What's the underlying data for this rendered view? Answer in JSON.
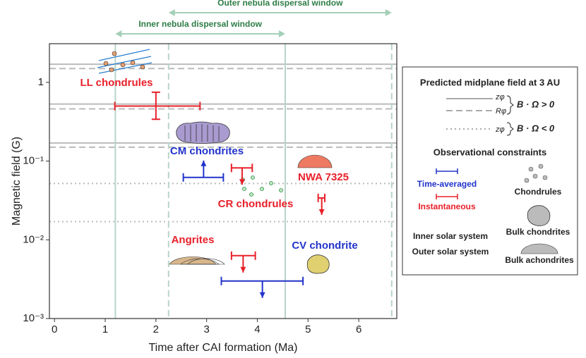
{
  "chart_data": {
    "type": "errorbar",
    "xlabel": "Time after CAI formation (Ma)",
    "ylabel": "Magnetic field (G)",
    "xlim": [
      -0.1,
      6.75
    ],
    "xticks": [
      0,
      1,
      2,
      3,
      4,
      5,
      6
    ],
    "ylim": [
      0.001,
      3.1
    ],
    "log_y": true,
    "yticks": [
      {
        "value": 0.001,
        "label": "10⁻³"
      },
      {
        "value": 0.01,
        "label": "10⁻²"
      },
      {
        "value": 0.1,
        "label": "10⁻¹"
      },
      1
    ],
    "windows": [
      {
        "name": "Inner nebula dispersal window",
        "style": "solid",
        "xlim": [
          1.2,
          4.55
        ]
      },
      {
        "name": "Outer nebula dispersal window",
        "style": "dashed",
        "xlim": [
          2.25,
          6.65
        ]
      }
    ],
    "field_lines": [
      {
        "style": "solid",
        "values": [
          1.7,
          0.53,
          0.17
        ]
      },
      {
        "style": "dashed",
        "values": [
          1.5,
          0.46,
          0.15
        ]
      },
      {
        "style": "dotted",
        "values": [
          0.052,
          0.017
        ]
      }
    ],
    "measurements": [
      {
        "name": "LL chondrules",
        "color": "#e8202a",
        "kind": "value",
        "x": 2.0,
        "xerr": [
          1.19,
          2.87
        ],
        "y": 0.5,
        "yerr": [
          0.34,
          0.75
        ]
      },
      {
        "name": "CM chondrites",
        "color": "#2233cc",
        "kind": "lower",
        "x": 2.94,
        "xerr": [
          2.54,
          3.33
        ],
        "y": 0.062
      },
      {
        "name": "CR chondrules",
        "color": "#e8202a",
        "kind": "upper",
        "x": 3.7,
        "xerr": [
          3.49,
          3.9
        ],
        "y": 0.082
      },
      {
        "name": "NWA 7325",
        "color": "#e8202a",
        "kind": "upper",
        "x": 5.27,
        "xerr": [
          5.2,
          5.33
        ],
        "y": 0.034
      },
      {
        "name": "Angrites",
        "color": "#e8202a",
        "kind": "upper",
        "x": 3.72,
        "xerr": [
          3.49,
          3.96
        ],
        "y": 0.0063
      },
      {
        "name": "CV chondrite",
        "color": "#2233cc",
        "kind": "upper",
        "x": 4.1,
        "xerr": [
          3.29,
          4.9
        ],
        "y": 0.003
      }
    ],
    "legend": {
      "title": "Predicted midplane field at 3 AU",
      "solid": "zφ",
      "dashed": "Rφ",
      "positive": "B · Ω > 0",
      "dotted": "zφ",
      "negative": "B · Ω < 0",
      "constraints": "Observational constraints",
      "time_averaged": "Time-averaged",
      "instantaneous": "Instantaneous",
      "chondrules": "Chondrules",
      "bulk_chondrites": "Bulk chondrites",
      "bulk_achondrites": "Bulk achondrites",
      "inner": "Inner solar system",
      "outer": "Outer solar system"
    }
  }
}
